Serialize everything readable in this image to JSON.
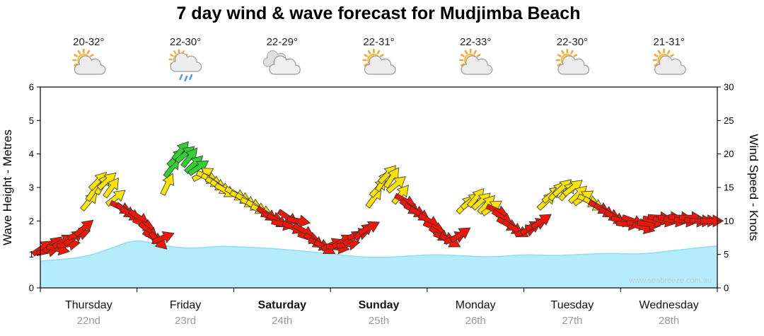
{
  "title": "7 day wind & wave forecast for Mudjimba Beach",
  "watermark": "www.seabreeze.com.au",
  "colors": {
    "r": "#ed1607",
    "y": "#ffe400",
    "g": "#30d130",
    "wave_fill": "#b5ecfb",
    "wave_edge": "#90dcf2"
  },
  "days": [
    {
      "name": "Thursday",
      "date": "22nd",
      "temp": "20-32°",
      "icon": "partly-cloudy",
      "bold": false
    },
    {
      "name": "Friday",
      "date": "23rd",
      "temp": "22-30°",
      "icon": "showers",
      "bold": false
    },
    {
      "name": "Saturday",
      "date": "24th",
      "temp": "22-29°",
      "icon": "cloudy",
      "bold": true
    },
    {
      "name": "Sunday",
      "date": "25th",
      "temp": "22-31°",
      "icon": "partly-cloudy",
      "bold": true
    },
    {
      "name": "Monday",
      "date": "26th",
      "temp": "22-33°",
      "icon": "partly-cloudy",
      "bold": false
    },
    {
      "name": "Tuesday",
      "date": "27th",
      "temp": "22-30°",
      "icon": "partly-cloudy",
      "bold": false
    },
    {
      "name": "Wednesday",
      "date": "28th",
      "temp": "21-31°",
      "icon": "partly-cloudy",
      "bold": false
    }
  ],
  "chart_data": {
    "type": "area",
    "title": "7 day wind & wave forecast for Mudjimba Beach",
    "y_left": {
      "label": "Wave Height - Metres",
      "range": [
        0,
        6
      ],
      "ticks": [
        0,
        1,
        2,
        3,
        4,
        5,
        6
      ]
    },
    "y_right": {
      "label": "Wind Speed - Knots",
      "range": [
        0,
        30
      ],
      "ticks": [
        0,
        5,
        10,
        15,
        20,
        25,
        30
      ]
    },
    "x_axis": {
      "unit": "days",
      "range": [
        0,
        7
      ]
    },
    "wave_series": {
      "name": "Wave Height (metres)",
      "t_days": [
        0,
        0.25,
        0.5,
        0.75,
        0.95,
        1.1,
        1.35,
        1.6,
        1.85,
        2.1,
        2.4,
        2.7,
        3.0,
        3.2,
        3.5,
        3.8,
        4.1,
        4.4,
        4.7,
        5.0,
        5.3,
        5.6,
        5.9,
        6.2,
        6.5,
        6.8,
        7.0
      ],
      "metres": [
        0.8,
        0.85,
        0.95,
        1.2,
        1.42,
        1.38,
        1.22,
        1.18,
        1.25,
        1.22,
        1.18,
        1.1,
        1.02,
        0.95,
        0.9,
        0.95,
        1.0,
        0.95,
        0.92,
        1.0,
        0.96,
        1.0,
        1.04,
        1.0,
        1.1,
        1.2,
        1.25
      ]
    },
    "wind_arrows": {
      "name": "Wind Speed (knots)",
      "format": [
        "day_index",
        "hour",
        "knots",
        "direction_deg",
        "color_code"
      ],
      "points": [
        [
          0,
          0.5,
          6,
          -35,
          "r"
        ],
        [
          0,
          1.8,
          5.5,
          -12,
          "r"
        ],
        [
          0,
          3.1,
          6.5,
          -40,
          "r"
        ],
        [
          0,
          4.4,
          5.8,
          12,
          "r"
        ],
        [
          0,
          5.7,
          7,
          -30,
          "r"
        ],
        [
          0,
          7,
          6.5,
          -8,
          "r"
        ],
        [
          0,
          8.3,
          7.5,
          -36,
          "r"
        ],
        [
          0,
          9.6,
          8,
          -18,
          "r"
        ],
        [
          0,
          10.9,
          9,
          -40,
          "r"
        ],
        [
          0,
          12.2,
          13,
          -50,
          "y"
        ],
        [
          0,
          13.3,
          14.5,
          -56,
          "y"
        ],
        [
          0,
          14.4,
          16,
          -46,
          "y"
        ],
        [
          0,
          15.5,
          15.5,
          -58,
          "y"
        ],
        [
          0,
          16.6,
          16,
          -42,
          "y"
        ],
        [
          0,
          17.7,
          15,
          -54,
          "y"
        ],
        [
          0,
          18.8,
          13.5,
          -38,
          "y"
        ],
        [
          0,
          20,
          12,
          26,
          "r"
        ],
        [
          0,
          21.2,
          11.5,
          36,
          "r"
        ],
        [
          0,
          22.4,
          11,
          30,
          "r"
        ],
        [
          1,
          0.5,
          10.5,
          34,
          "r"
        ],
        [
          1,
          1.7,
          9.5,
          24,
          "r"
        ],
        [
          1,
          2.9,
          8.5,
          40,
          "r"
        ],
        [
          1,
          4.1,
          7.5,
          30,
          "r"
        ],
        [
          1,
          5.3,
          7,
          44,
          "r"
        ],
        [
          1,
          6.5,
          7.5,
          -22,
          "r"
        ],
        [
          1,
          7.6,
          15.5,
          -64,
          "y"
        ],
        [
          1,
          8.7,
          18,
          -54,
          "g"
        ],
        [
          1,
          9.8,
          19.5,
          -46,
          "g"
        ],
        [
          1,
          10.9,
          20.5,
          -50,
          "g"
        ],
        [
          1,
          12,
          20,
          -40,
          "g"
        ],
        [
          1,
          13.1,
          19.5,
          -52,
          "g"
        ],
        [
          1,
          14.2,
          18.5,
          -44,
          "g"
        ],
        [
          1,
          15.3,
          18,
          -34,
          "g"
        ],
        [
          1,
          16.4,
          17,
          -28,
          "y"
        ],
        [
          1,
          17.5,
          16.5,
          24,
          "y"
        ],
        [
          1,
          18.6,
          16,
          30,
          "y"
        ],
        [
          1,
          19.7,
          15.5,
          28,
          "y"
        ],
        [
          1,
          20.8,
          15,
          32,
          "y"
        ],
        [
          1,
          22,
          14.5,
          30,
          "y"
        ],
        [
          2,
          0.5,
          14,
          30,
          "y"
        ],
        [
          2,
          1.8,
          13.5,
          26,
          "y"
        ],
        [
          2,
          3.1,
          13,
          32,
          "y"
        ],
        [
          2,
          4.4,
          12.5,
          25,
          "y"
        ],
        [
          2,
          5.7,
          12,
          30,
          "y"
        ],
        [
          2,
          7,
          11.5,
          24,
          "y"
        ],
        [
          2,
          8.3,
          11,
          34,
          "r"
        ],
        [
          2,
          9.6,
          10.5,
          20,
          "r"
        ],
        [
          2,
          10.9,
          10,
          30,
          "r"
        ],
        [
          2,
          12.2,
          9.5,
          14,
          "r"
        ],
        [
          2,
          13.5,
          10.5,
          34,
          "r"
        ],
        [
          2,
          14.8,
          9,
          24,
          "r"
        ],
        [
          2,
          16.1,
          10,
          10,
          "r"
        ],
        [
          2,
          17.4,
          8.5,
          30,
          "r"
        ],
        [
          2,
          18.7,
          7.5,
          18,
          "r"
        ],
        [
          2,
          20,
          7,
          34,
          "r"
        ],
        [
          2,
          21.3,
          6.5,
          24,
          "r"
        ],
        [
          2,
          22.6,
          6,
          30,
          "r"
        ],
        [
          3,
          0.5,
          6.5,
          -24,
          "r"
        ],
        [
          3,
          1.8,
          6,
          8,
          "r"
        ],
        [
          3,
          3.1,
          7,
          -30,
          "r"
        ],
        [
          3,
          4.4,
          6.5,
          -10,
          "r"
        ],
        [
          3,
          5.7,
          7.5,
          -34,
          "r"
        ],
        [
          3,
          7,
          8,
          -18,
          "r"
        ],
        [
          3,
          8.3,
          8.5,
          -38,
          "r"
        ],
        [
          3,
          9.6,
          9,
          -28,
          "r"
        ],
        [
          3,
          10.9,
          13.5,
          -54,
          "y"
        ],
        [
          3,
          12,
          15,
          -48,
          "y"
        ],
        [
          3,
          13.1,
          16,
          -58,
          "y"
        ],
        [
          3,
          14.2,
          17,
          -46,
          "y"
        ],
        [
          3,
          15.3,
          16.5,
          -56,
          "y"
        ],
        [
          3,
          16.4,
          15.5,
          -40,
          "y"
        ],
        [
          3,
          17.5,
          14,
          -50,
          "y"
        ],
        [
          3,
          18.6,
          13,
          28,
          "r"
        ],
        [
          3,
          19.8,
          12,
          36,
          "r"
        ],
        [
          3,
          21,
          11.5,
          28,
          "r"
        ],
        [
          3,
          22.2,
          11,
          32,
          "r"
        ],
        [
          4,
          0.5,
          10,
          30,
          "r"
        ],
        [
          4,
          1.8,
          9,
          24,
          "r"
        ],
        [
          4,
          3.1,
          8,
          34,
          "r"
        ],
        [
          4,
          4.4,
          7.5,
          20,
          "r"
        ],
        [
          4,
          5.7,
          7,
          30,
          "r"
        ],
        [
          4,
          7,
          7.5,
          -24,
          "r"
        ],
        [
          4,
          8.3,
          8,
          -34,
          "r"
        ],
        [
          4,
          9.6,
          12.5,
          -46,
          "y"
        ],
        [
          4,
          10.9,
          13,
          -38,
          "y"
        ],
        [
          4,
          12.2,
          13.5,
          -50,
          "y"
        ],
        [
          4,
          13.5,
          13,
          -42,
          "y"
        ],
        [
          4,
          14.8,
          12.5,
          -48,
          "y"
        ],
        [
          4,
          16.1,
          12,
          -34,
          "y"
        ],
        [
          4,
          17.4,
          11.5,
          24,
          "r"
        ],
        [
          4,
          18.7,
          10.5,
          34,
          "r"
        ],
        [
          4,
          20,
          9.5,
          28,
          "r"
        ],
        [
          4,
          21.3,
          9,
          32,
          "r"
        ],
        [
          4,
          22.6,
          8.5,
          30,
          "r"
        ],
        [
          5,
          0.5,
          8.5,
          -20,
          "r"
        ],
        [
          5,
          1.8,
          9,
          -30,
          "r"
        ],
        [
          5,
          3.1,
          9.5,
          -24,
          "r"
        ],
        [
          5,
          4.4,
          10,
          -34,
          "r"
        ],
        [
          5,
          5.7,
          13,
          -44,
          "y"
        ],
        [
          5,
          7,
          14,
          -40,
          "y"
        ],
        [
          5,
          8.3,
          14.5,
          -50,
          "y"
        ],
        [
          5,
          9.6,
          15,
          -42,
          "y"
        ],
        [
          5,
          10.9,
          14.5,
          -48,
          "y"
        ],
        [
          5,
          12.2,
          15,
          -38,
          "y"
        ],
        [
          5,
          13.5,
          14,
          -44,
          "y"
        ],
        [
          5,
          14.8,
          13.5,
          -34,
          "y"
        ],
        [
          5,
          16.1,
          13,
          24,
          "y"
        ],
        [
          5,
          17.4,
          12.5,
          30,
          "y"
        ],
        [
          5,
          18.7,
          12,
          28,
          "r"
        ],
        [
          5,
          20,
          11.5,
          32,
          "r"
        ],
        [
          5,
          21.3,
          11,
          26,
          "r"
        ],
        [
          5,
          22.6,
          10.5,
          30,
          "r"
        ],
        [
          6,
          0.5,
          10,
          14,
          "r"
        ],
        [
          6,
          1.8,
          9.5,
          6,
          "r"
        ],
        [
          6,
          3.1,
          10,
          20,
          "r"
        ],
        [
          6,
          4.4,
          9.5,
          10,
          "r"
        ],
        [
          6,
          5.7,
          9,
          16,
          "r"
        ],
        [
          6,
          7,
          9.5,
          8,
          "r"
        ],
        [
          6,
          8.3,
          10,
          14,
          "r"
        ],
        [
          6,
          9.6,
          10.5,
          4,
          "r"
        ],
        [
          6,
          10.9,
          10,
          12,
          "r"
        ],
        [
          6,
          12.2,
          10.5,
          0,
          "r"
        ],
        [
          6,
          13.5,
          10,
          10,
          "r"
        ],
        [
          6,
          14.8,
          10.5,
          4,
          "r"
        ],
        [
          6,
          16.1,
          10,
          8,
          "r"
        ],
        [
          6,
          17.4,
          10.5,
          0,
          "r"
        ],
        [
          6,
          18.7,
          10,
          6,
          "r"
        ],
        [
          6,
          20,
          10,
          2,
          "r"
        ],
        [
          6,
          21.3,
          10,
          0,
          "r"
        ],
        [
          6,
          22.6,
          10,
          0,
          "r"
        ]
      ]
    }
  }
}
